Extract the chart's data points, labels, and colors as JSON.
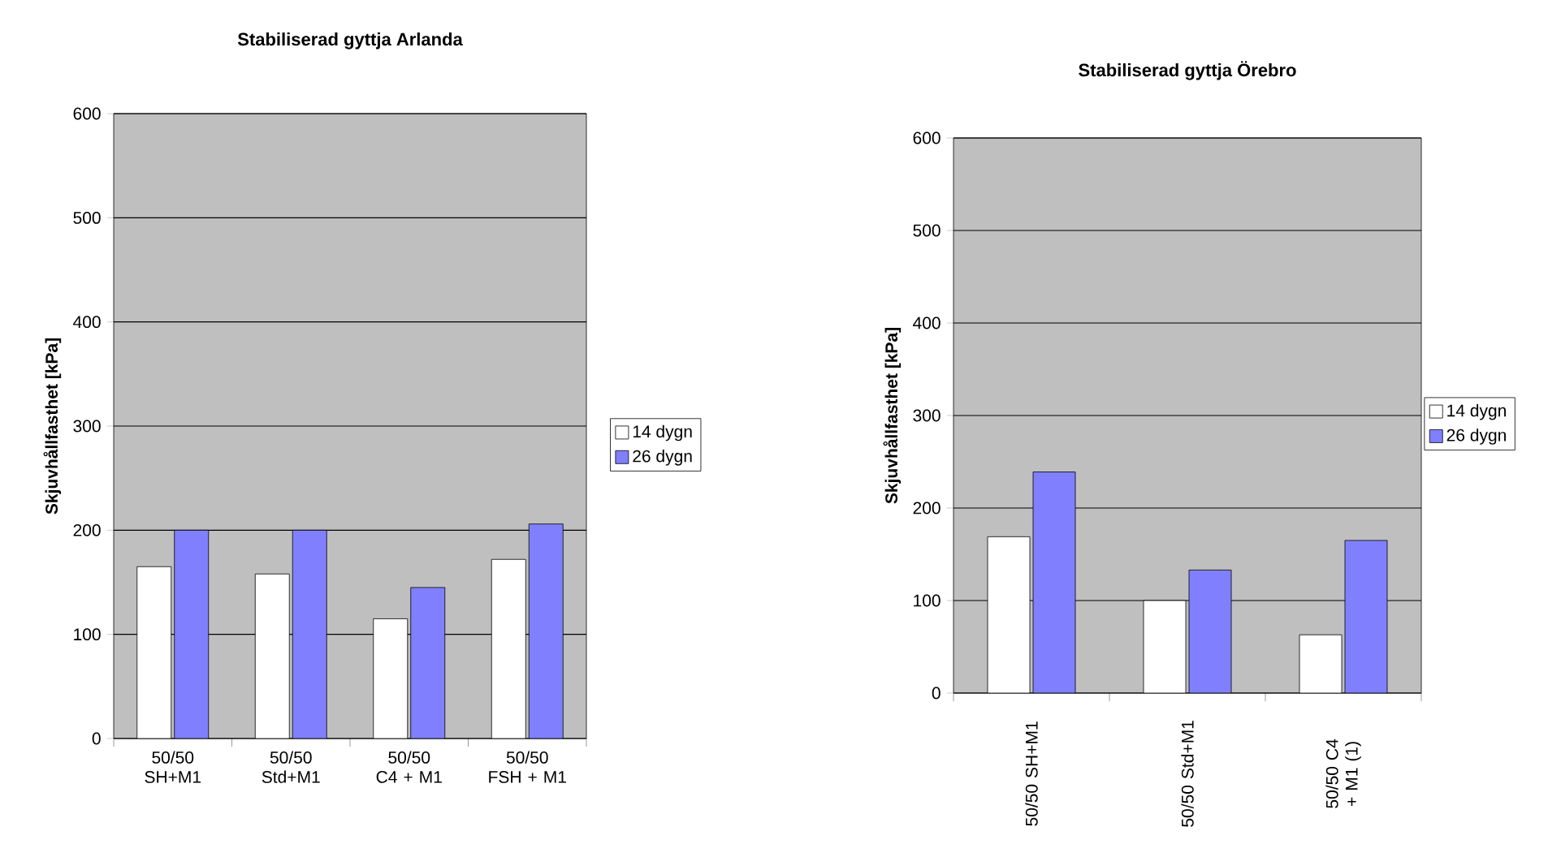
{
  "chart_data": [
    {
      "type": "bar",
      "title": "Stabiliserad gyttja Arlanda",
      "ylabel": "Skjuvhållfasthet [kPa]",
      "categories": [
        "50/50 SH+M1",
        "50/50 Std+M1",
        "50/50 C4 + M1",
        "50/50 FSH + M1"
      ],
      "series": [
        {
          "name": "14 dygn",
          "color": "#ffffff",
          "values": [
            165,
            158,
            115,
            172
          ]
        },
        {
          "name": "26 dygn",
          "color": "#8080ff",
          "values": [
            200,
            200,
            145,
            206
          ]
        }
      ],
      "ylim": [
        0,
        600
      ],
      "yticks": [
        0,
        100,
        200,
        300,
        400,
        500,
        600
      ],
      "grid": "y",
      "legend": "right"
    },
    {
      "type": "bar",
      "title": "Stabiliserad gyttja Örebro",
      "ylabel": "Skjuvhållfasthet [kPa]",
      "categories": [
        "50/50 SH+M1",
        "50/50 Std+M1",
        "50/50 C4 + M1 (1)"
      ],
      "series": [
        {
          "name": "14 dygn",
          "color": "#ffffff",
          "values": [
            169,
            100,
            63
          ]
        },
        {
          "name": "26 dygn",
          "color": "#8080ff",
          "values": [
            239,
            133,
            165
          ]
        }
      ],
      "ylim": [
        0,
        600
      ],
      "yticks": [
        0,
        100,
        200,
        300,
        400,
        500,
        600
      ],
      "grid": "y",
      "legend": "right"
    }
  ]
}
